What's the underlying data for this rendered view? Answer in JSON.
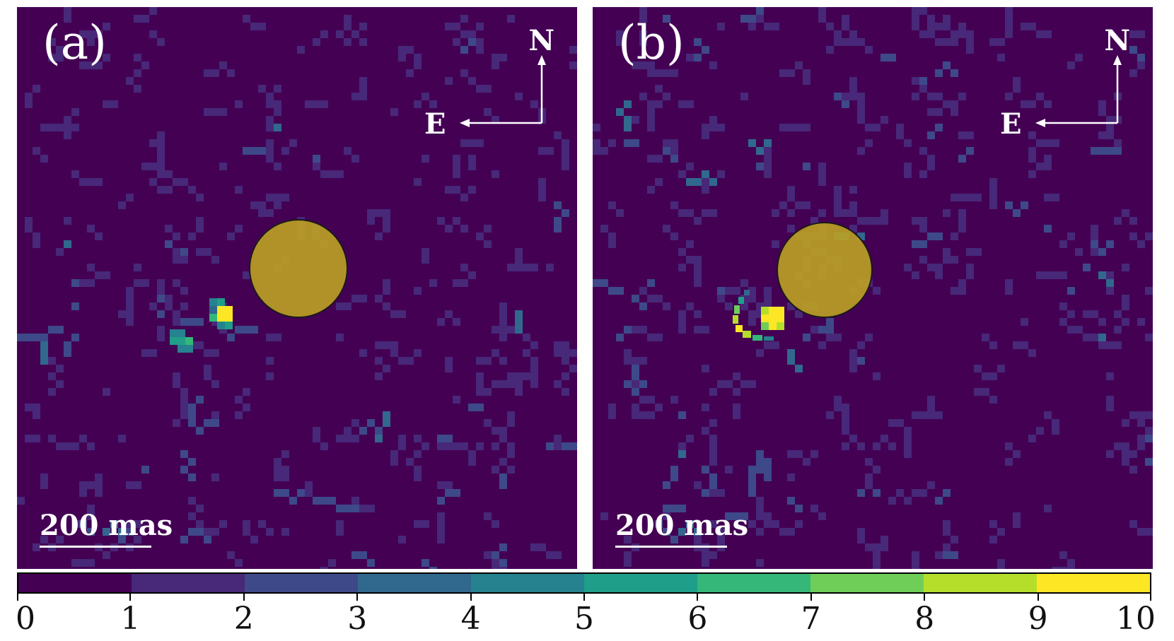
{
  "panels": [
    {
      "id": "a",
      "label": "(a)",
      "scalebar_label": "200 mas",
      "compass": {
        "north": "N",
        "east": "E"
      },
      "sources": [
        {
          "description": "bright compact point source",
          "level": 10
        },
        {
          "description": "fainter extended blob",
          "level": 5
        }
      ]
    },
    {
      "id": "b",
      "label": "(b)",
      "scalebar_label": "200 mas",
      "compass": {
        "north": "N",
        "east": "E"
      },
      "sources": [
        {
          "description": "bright compact point source",
          "level": 10
        },
        {
          "description": "curved arc feature",
          "level": 9
        }
      ]
    }
  ],
  "colorbar": {
    "colormap": "viridis",
    "min": 0,
    "max": 10,
    "ticks": [
      "0",
      "1",
      "2",
      "3",
      "4",
      "5",
      "6",
      "7",
      "8",
      "9",
      "10"
    ],
    "colors": [
      "#440154",
      "#482878",
      "#3e4989",
      "#31688e",
      "#26828e",
      "#1f9e89",
      "#35b779",
      "#6ece58",
      "#b5de2b",
      "#fde725"
    ]
  },
  "mask_color": "#bea223"
}
